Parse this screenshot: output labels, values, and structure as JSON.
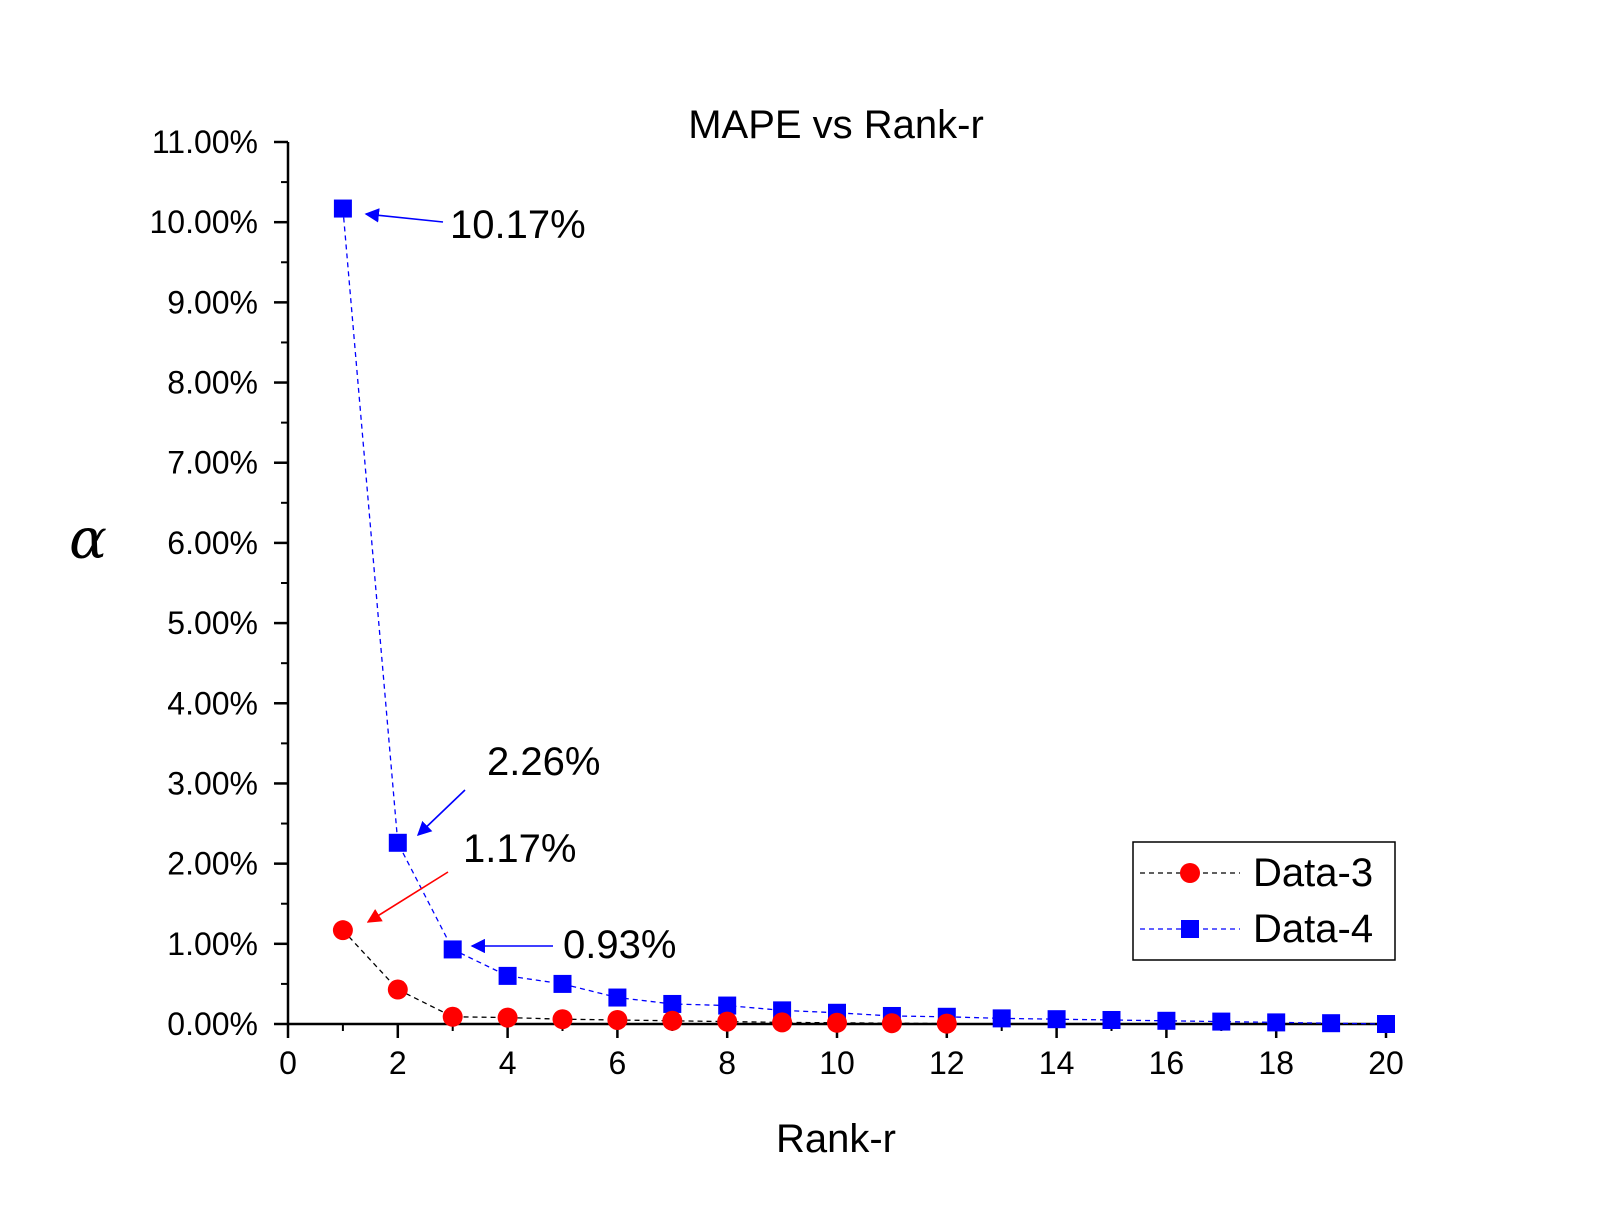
{
  "chart_data": {
    "type": "scatter",
    "title": "MAPE vs Rank-r",
    "xlabel": "Rank-r",
    "ylabel": "α",
    "xlim": [
      0,
      20
    ],
    "ylim": [
      0,
      11
    ],
    "x_ticks": [
      "0",
      "2",
      "4",
      "6",
      "8",
      "10",
      "12",
      "14",
      "16",
      "18",
      "20"
    ],
    "y_ticks": [
      "0.00%",
      "1.00%",
      "2.00%",
      "3.00%",
      "4.00%",
      "5.00%",
      "6.00%",
      "7.00%",
      "8.00%",
      "9.00%",
      "10.00%",
      "11.00%"
    ],
    "legend_position": "bottom-right",
    "series": [
      {
        "name": "Data-3",
        "marker": "circle",
        "color": "#ff0000",
        "line_color": "#000000",
        "x": [
          1,
          2,
          3,
          4,
          5,
          6,
          7,
          8,
          9,
          10,
          11,
          12
        ],
        "y": [
          1.17,
          0.43,
          0.09,
          0.08,
          0.06,
          0.05,
          0.04,
          0.03,
          0.02,
          0.015,
          0.01,
          0.005
        ]
      },
      {
        "name": "Data-4",
        "marker": "square",
        "color": "#0000ff",
        "line_color": "#0000ff",
        "x": [
          1,
          2,
          3,
          4,
          5,
          6,
          7,
          8,
          9,
          10,
          11,
          12,
          13,
          14,
          15,
          16,
          17,
          18,
          19,
          20
        ],
        "y": [
          10.17,
          2.26,
          0.93,
          0.6,
          0.5,
          0.33,
          0.25,
          0.23,
          0.17,
          0.14,
          0.1,
          0.09,
          0.07,
          0.06,
          0.05,
          0.04,
          0.03,
          0.02,
          0.01,
          0.0
        ]
      }
    ],
    "annotations": [
      {
        "text": "10.17%",
        "series": "Data-4",
        "x": 1,
        "y": 10.17,
        "color": "#0000ff"
      },
      {
        "text": "2.26%",
        "series": "Data-4",
        "x": 2,
        "y": 2.26,
        "color": "#0000ff"
      },
      {
        "text": "1.17%",
        "series": "Data-3",
        "x": 1,
        "y": 1.17,
        "color": "#ff0000"
      },
      {
        "text": "0.93%",
        "series": "Data-4",
        "x": 3,
        "y": 0.93,
        "color": "#0000ff"
      }
    ]
  }
}
